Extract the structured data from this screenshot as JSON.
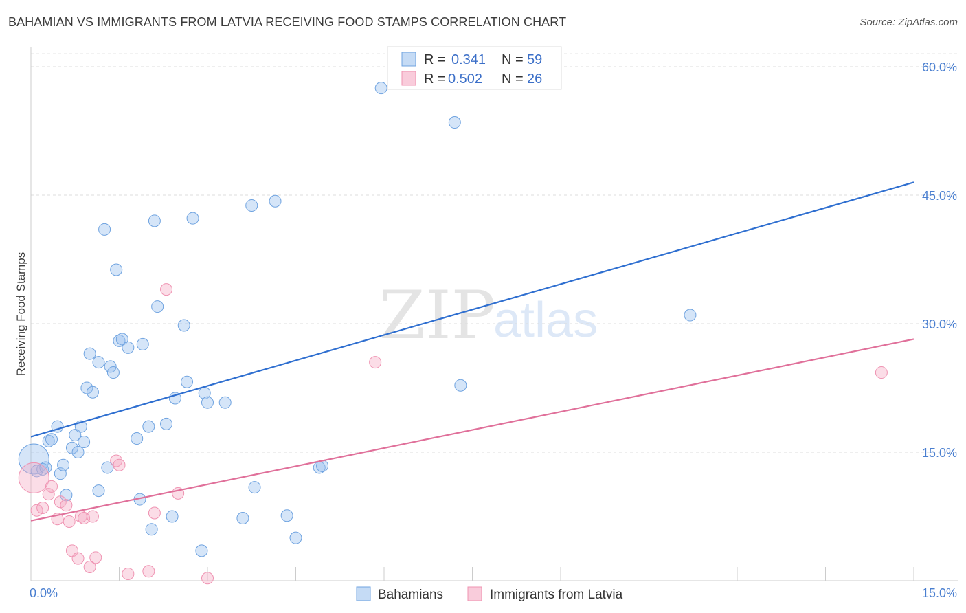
{
  "title": "BAHAMIAN VS IMMIGRANTS FROM LATVIA RECEIVING FOOD STAMPS CORRELATION CHART",
  "source": "Source: ZipAtlas.com",
  "watermark": {
    "zip": "ZIP",
    "atlas": "atlas"
  },
  "legend_top": [
    {
      "r_label": "R = ",
      "r_value": "0.341",
      "n_label": "N = ",
      "n_value": "59"
    },
    {
      "r_label": "R = ",
      "r_value": "0.502",
      "n_label": "N = ",
      "n_value": "26"
    }
  ],
  "chart_data": {
    "type": "scatter",
    "title": "BAHAMIAN VS IMMIGRANTS FROM LATVIA RECEIVING FOOD STAMPS CORRELATION CHART",
    "xlabel": "",
    "ylabel": "Receiving Food Stamps",
    "xlim": [
      0,
      15
    ],
    "ylim": [
      0,
      60
    ],
    "x_tick_labels": [
      "0.0%",
      "15.0%"
    ],
    "y_ticks": [
      15,
      30,
      45,
      60
    ],
    "y_tick_labels": [
      "15.0%",
      "30.0%",
      "45.0%",
      "60.0%"
    ],
    "grid": true,
    "legend_position": "top-center",
    "colors": {
      "bahamians": "#6fa3e0",
      "latvia": "#ef93b2",
      "blue_line": "#2f6fd0",
      "pink_line": "#e0709a"
    },
    "series": [
      {
        "name": "Bahamians",
        "r": 0.341,
        "n": 59,
        "trend": {
          "x": [
            0,
            15
          ],
          "y": [
            16.8,
            46.5
          ]
        },
        "points": [
          {
            "x": 0.05,
            "y": 14.2,
            "big": true
          },
          {
            "x": 0.1,
            "y": 12.8
          },
          {
            "x": 0.2,
            "y": 13.0
          },
          {
            "x": 0.25,
            "y": 13.2
          },
          {
            "x": 0.3,
            "y": 16.3
          },
          {
            "x": 0.35,
            "y": 16.5
          },
          {
            "x": 0.45,
            "y": 18.0
          },
          {
            "x": 0.5,
            "y": 12.5
          },
          {
            "x": 0.55,
            "y": 13.5
          },
          {
            "x": 0.6,
            "y": 10.0
          },
          {
            "x": 0.7,
            "y": 15.5
          },
          {
            "x": 0.75,
            "y": 17.0
          },
          {
            "x": 0.8,
            "y": 15.0
          },
          {
            "x": 0.85,
            "y": 18.0
          },
          {
            "x": 0.9,
            "y": 16.2
          },
          {
            "x": 0.95,
            "y": 22.5
          },
          {
            "x": 1.0,
            "y": 26.5
          },
          {
            "x": 1.05,
            "y": 22.0
          },
          {
            "x": 1.15,
            "y": 25.5
          },
          {
            "x": 1.15,
            "y": 10.5
          },
          {
            "x": 1.25,
            "y": 41.0
          },
          {
            "x": 1.3,
            "y": 13.2
          },
          {
            "x": 1.35,
            "y": 25.0
          },
          {
            "x": 1.4,
            "y": 24.3
          },
          {
            "x": 1.45,
            "y": 36.3
          },
          {
            "x": 1.5,
            "y": 28.0
          },
          {
            "x": 1.55,
            "y": 28.2
          },
          {
            "x": 1.65,
            "y": 27.2
          },
          {
            "x": 1.8,
            "y": 16.6
          },
          {
            "x": 1.85,
            "y": 9.5
          },
          {
            "x": 1.9,
            "y": 27.6
          },
          {
            "x": 2.0,
            "y": 18.0
          },
          {
            "x": 2.05,
            "y": 6.0
          },
          {
            "x": 2.1,
            "y": 42.0
          },
          {
            "x": 2.15,
            "y": 32.0
          },
          {
            "x": 2.3,
            "y": 18.3
          },
          {
            "x": 2.4,
            "y": 7.5
          },
          {
            "x": 2.45,
            "y": 21.3
          },
          {
            "x": 2.6,
            "y": 29.8
          },
          {
            "x": 2.65,
            "y": 23.2
          },
          {
            "x": 2.75,
            "y": 42.3
          },
          {
            "x": 2.9,
            "y": 3.5
          },
          {
            "x": 2.95,
            "y": 21.9
          },
          {
            "x": 3.0,
            "y": 20.8
          },
          {
            "x": 3.3,
            "y": 20.8
          },
          {
            "x": 3.6,
            "y": 7.3
          },
          {
            "x": 3.75,
            "y": 43.8
          },
          {
            "x": 3.8,
            "y": 10.9
          },
          {
            "x": 4.15,
            "y": 44.3
          },
          {
            "x": 4.35,
            "y": 7.6
          },
          {
            "x": 4.5,
            "y": 5.0
          },
          {
            "x": 4.9,
            "y": 13.2
          },
          {
            "x": 4.95,
            "y": 13.4
          },
          {
            "x": 5.95,
            "y": 57.5
          },
          {
            "x": 7.2,
            "y": 53.5
          },
          {
            "x": 7.3,
            "y": 22.8
          },
          {
            "x": 11.2,
            "y": 31.0
          }
        ]
      },
      {
        "name": "Immigrants from Latvia",
        "r": 0.502,
        "n": 26,
        "trend": {
          "x": [
            0,
            15
          ],
          "y": [
            7.0,
            28.2
          ]
        },
        "points": [
          {
            "x": 0.05,
            "y": 12.0,
            "big": true
          },
          {
            "x": 0.1,
            "y": 8.2
          },
          {
            "x": 0.2,
            "y": 8.5
          },
          {
            "x": 0.3,
            "y": 10.1
          },
          {
            "x": 0.35,
            "y": 11.0
          },
          {
            "x": 0.45,
            "y": 7.2
          },
          {
            "x": 0.5,
            "y": 9.2
          },
          {
            "x": 0.6,
            "y": 8.8
          },
          {
            "x": 0.65,
            "y": 6.9
          },
          {
            "x": 0.7,
            "y": 3.5
          },
          {
            "x": 0.8,
            "y": 2.6
          },
          {
            "x": 0.85,
            "y": 7.5
          },
          {
            "x": 0.9,
            "y": 7.3
          },
          {
            "x": 1.0,
            "y": 1.6
          },
          {
            "x": 1.05,
            "y": 7.5
          },
          {
            "x": 1.1,
            "y": 2.7
          },
          {
            "x": 1.45,
            "y": 14.0
          },
          {
            "x": 1.5,
            "y": 13.5
          },
          {
            "x": 1.65,
            "y": 0.8
          },
          {
            "x": 2.0,
            "y": 1.1
          },
          {
            "x": 2.1,
            "y": 7.9
          },
          {
            "x": 2.3,
            "y": 34.0
          },
          {
            "x": 2.5,
            "y": 10.2
          },
          {
            "x": 3.0,
            "y": 0.3
          },
          {
            "x": 5.85,
            "y": 25.5
          },
          {
            "x": 14.45,
            "y": 24.3
          }
        ]
      }
    ]
  }
}
